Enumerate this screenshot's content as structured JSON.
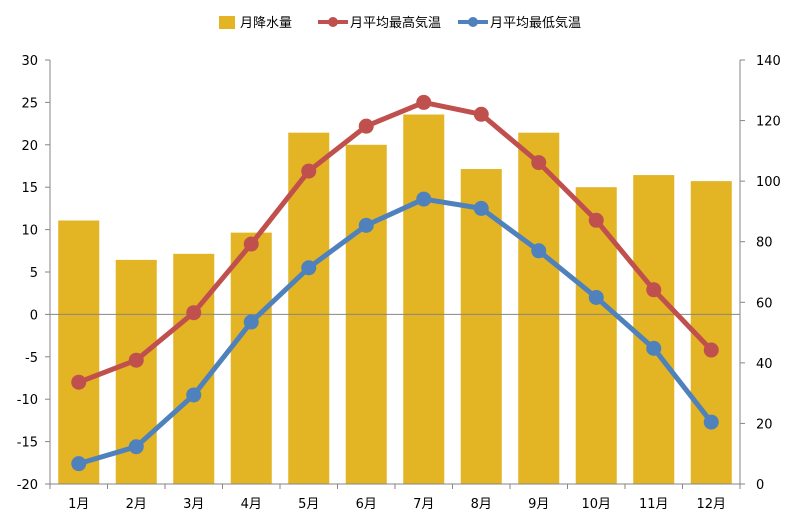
{
  "chart_data": {
    "type": "bar-line-combo",
    "categories": [
      "1月",
      "2月",
      "3月",
      "4月",
      "5月",
      "6月",
      "7月",
      "8月",
      "9月",
      "10月",
      "11月",
      "12月"
    ],
    "left_axis": {
      "min": -20,
      "max": 30,
      "step": 5,
      "ticks": [
        "30",
        "25",
        "20",
        "15",
        "10",
        "5",
        "0",
        "-5",
        "-10",
        "-15",
        "-20"
      ]
    },
    "right_axis": {
      "min": 0,
      "max": 140,
      "step": 20,
      "ticks": [
        "140",
        "120",
        "100",
        "80",
        "60",
        "40",
        "20",
        "0"
      ]
    },
    "grid": false,
    "legend_position": "top",
    "series": [
      {
        "name": "月降水量",
        "type": "bar",
        "axis": "right",
        "color": "#E3B423",
        "values": [
          87,
          74,
          76,
          83,
          116,
          112,
          122,
          104,
          116,
          98,
          102,
          100
        ]
      },
      {
        "name": "月平均最高気温",
        "type": "line",
        "axis": "left",
        "color": "#C0504D",
        "values": [
          -8.0,
          -5.4,
          0.2,
          8.3,
          16.9,
          22.2,
          25.0,
          23.6,
          17.9,
          11.1,
          2.9,
          -4.2
        ]
      },
      {
        "name": "月平均最低気温",
        "type": "line",
        "axis": "left",
        "color": "#4F81BD",
        "values": [
          -17.6,
          -15.6,
          -9.5,
          -0.9,
          5.5,
          10.5,
          13.6,
          12.5,
          7.5,
          2.0,
          -4.0,
          -12.7
        ]
      }
    ]
  }
}
